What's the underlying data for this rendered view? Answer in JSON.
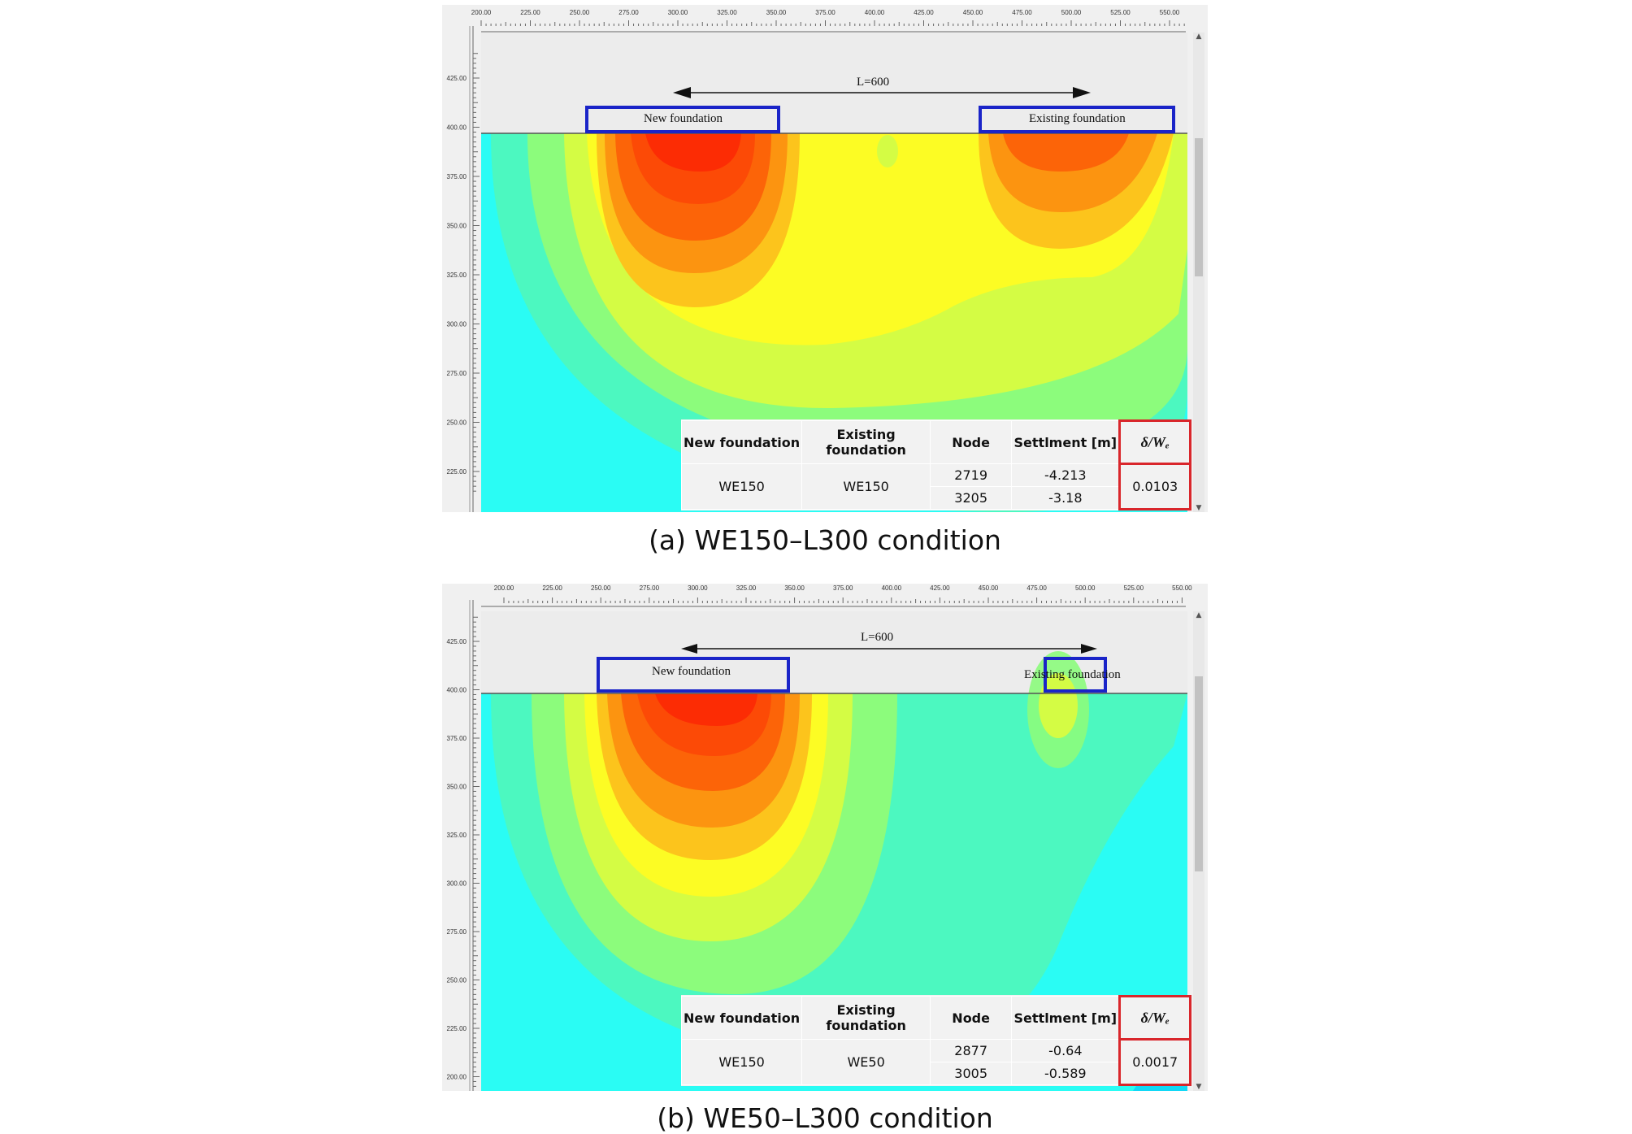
{
  "panels": [
    {
      "caption": "(a)  WE150–L300  condition",
      "x_ticks": [
        "200.00",
        "225.00",
        "250.00",
        "275.00",
        "300.00",
        "325.00",
        "350.00",
        "375.00",
        "400.00",
        "425.00",
        "450.00",
        "475.00",
        "500.00",
        "525.00",
        "550.00"
      ],
      "y_ticks": [
        "425.00",
        "400.00",
        "375.00",
        "350.00",
        "325.00",
        "300.00",
        "275.00",
        "250.00",
        "225.00"
      ],
      "span_label": "L=600",
      "new_foundation_label": "New foundation",
      "existing_foundation_label": "Existing foundation",
      "table": {
        "headers": [
          "New foundation",
          "Existing foundation",
          "Node",
          "Settlment [m]",
          "δ/Wₑ"
        ],
        "new_foundation": "WE150",
        "existing_foundation": "WE150",
        "rows": [
          {
            "node": "2719",
            "settlement": "-4.213"
          },
          {
            "node": "3205",
            "settlement": "-3.18"
          }
        ],
        "ratio": "0.0103"
      }
    },
    {
      "caption": "(b)  WE50–L300  condition",
      "x_ticks": [
        "200.00",
        "225.00",
        "250.00",
        "275.00",
        "300.00",
        "325.00",
        "350.00",
        "375.00",
        "400.00",
        "425.00",
        "450.00",
        "475.00",
        "500.00",
        "525.00",
        "550.00"
      ],
      "y_ticks": [
        "425.00",
        "400.00",
        "375.00",
        "350.00",
        "325.00",
        "300.00",
        "275.00",
        "250.00",
        "225.00",
        "200.00"
      ],
      "span_label": "L=600",
      "new_foundation_label": "New foundation",
      "existing_foundation_label": "Existing foundation",
      "table": {
        "headers": [
          "New foundation",
          "Existing foundation",
          "Node",
          "Settlment [m]",
          "δ/Wₑ"
        ],
        "new_foundation": "WE150",
        "existing_foundation": "WE50",
        "rows": [
          {
            "node": "2877",
            "settlement": "-0.64"
          },
          {
            "node": "3005",
            "settlement": "-0.589"
          }
        ],
        "ratio": "0.0017"
      }
    }
  ],
  "colors": {
    "annotation_box": "#1a24c8",
    "ratio_highlight": "#d9262b",
    "contour_scale": [
      "#12c8f0",
      "#2afcf4",
      "#4cf8c0",
      "#8cfc7c",
      "#d4fc44",
      "#fcfc24",
      "#fcc41c",
      "#fc9410",
      "#fc6408",
      "#fc2c04"
    ]
  }
}
